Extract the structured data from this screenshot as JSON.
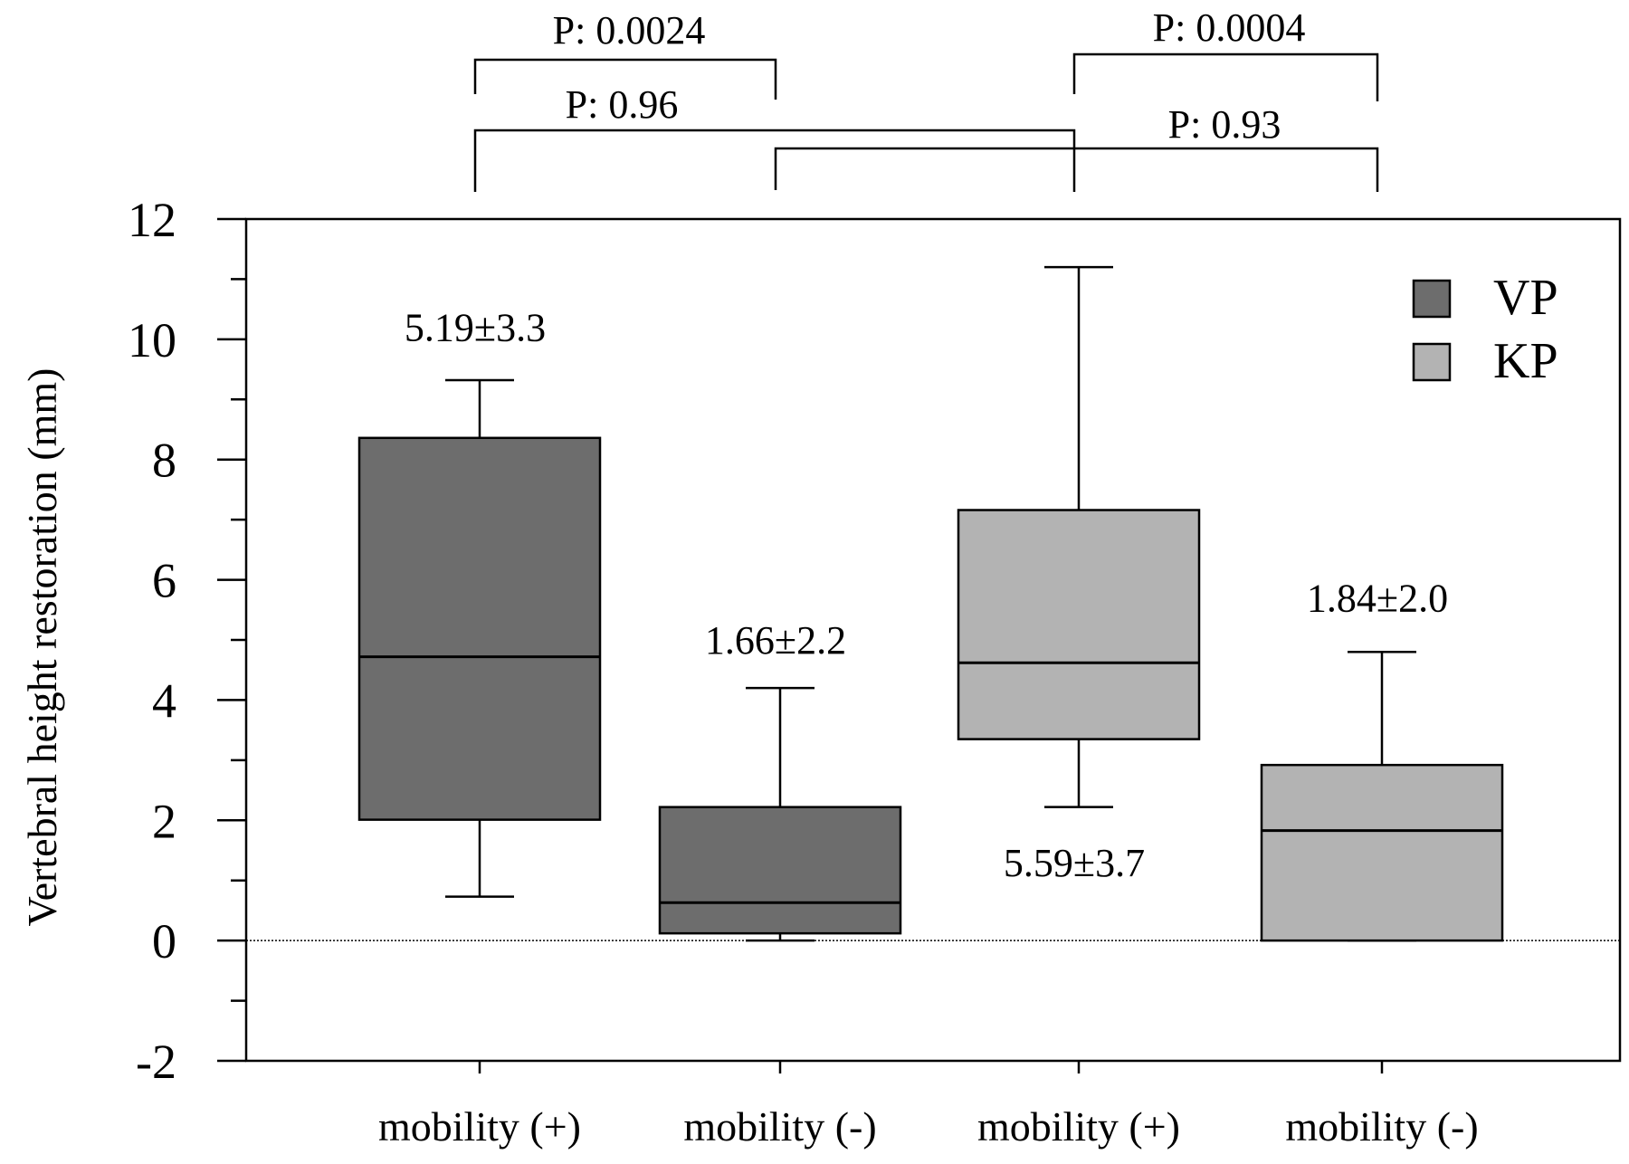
{
  "chart_data": {
    "type": "box",
    "ylabel": "Vertebral height restoration (mm)",
    "ylim": [
      -2,
      12
    ],
    "yticks": [
      -2,
      0,
      2,
      4,
      6,
      8,
      10,
      12
    ],
    "reference_line_y": 0,
    "legend": {
      "placement": "top-right",
      "entries": [
        {
          "name": "VP",
          "color": "#6d6d6d"
        },
        {
          "name": "KP",
          "color": "#b3b3b3"
        }
      ]
    },
    "categories": [
      "mobility (+)",
      "mobility (-)",
      "mobility (+)",
      "mobility (-)"
    ],
    "boxes": [
      {
        "group": "VP",
        "label": "mobility (+)",
        "whisker_low": 0.73,
        "q1": 2.01,
        "median": 4.72,
        "q3": 8.36,
        "whisker_high": 9.32,
        "annotation": "5.19±3.3",
        "annotation_y": 10.2
      },
      {
        "group": "VP",
        "label": "mobility (-)",
        "whisker_low": 0.0,
        "q1": 0.12,
        "median": 0.63,
        "q3": 2.22,
        "whisker_high": 4.2,
        "annotation": "1.66±2.2",
        "annotation_y": 5.0
      },
      {
        "group": "KP",
        "label": "mobility (+)",
        "whisker_low": 2.22,
        "q1": 3.35,
        "median": 4.62,
        "q3": 7.16,
        "whisker_high": 11.2,
        "annotation": "5.59±3.7",
        "annotation_y": 1.3
      },
      {
        "group": "KP",
        "label": "mobility (-)",
        "whisker_low": 0.0,
        "q1": 0.0,
        "median": 1.83,
        "q3": 2.92,
        "whisker_high": 4.8,
        "annotation": "1.84±2.0",
        "annotation_y": 5.7
      }
    ],
    "comparisons": [
      {
        "label": "P: 0.0024",
        "from": 0,
        "to": 1
      },
      {
        "label": "P: 0.0004",
        "from": 2,
        "to": 3
      },
      {
        "label": "P: 0.96",
        "from": 0,
        "to": 2
      },
      {
        "label": "P: 0.93",
        "from": 1,
        "to": 3
      }
    ]
  }
}
